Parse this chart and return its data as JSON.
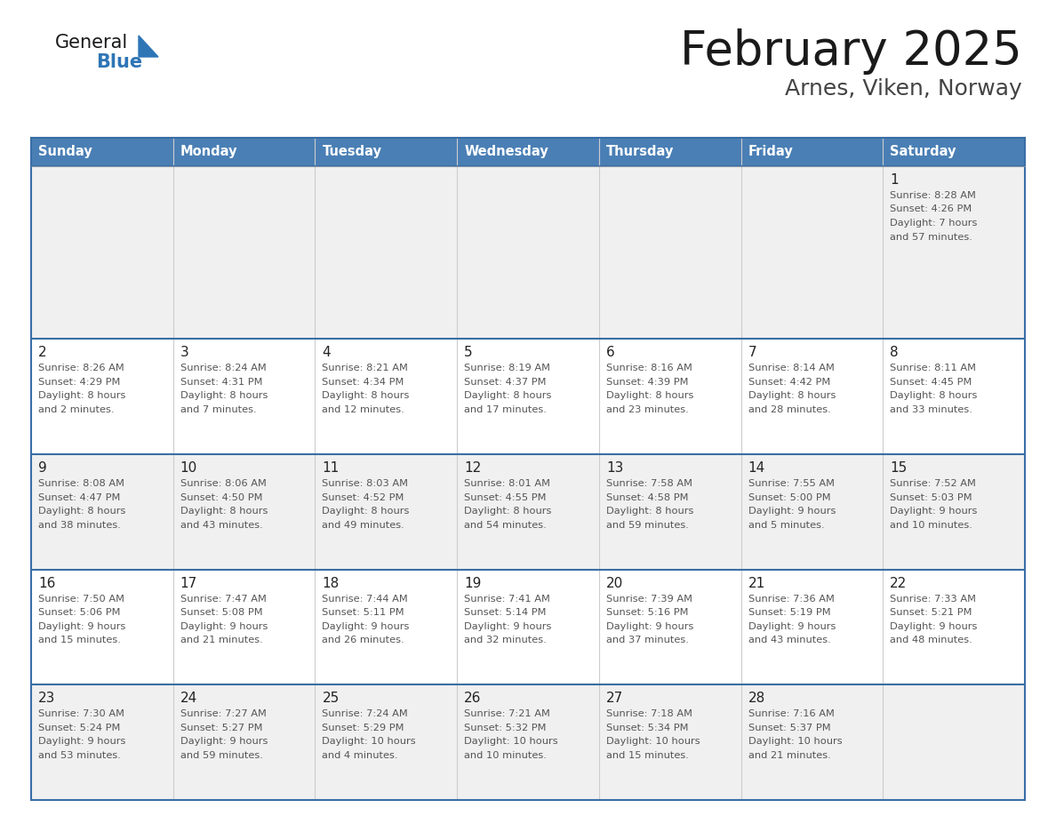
{
  "title": "February 2025",
  "subtitle": "Arnes, Viken, Norway",
  "days_of_week": [
    "Sunday",
    "Monday",
    "Tuesday",
    "Wednesday",
    "Thursday",
    "Friday",
    "Saturday"
  ],
  "header_bg": "#4a7fb5",
  "header_text": "#FFFFFF",
  "row1_bg": "#F0F0F0",
  "row2_bg": "#FFFFFF",
  "row3_bg": "#F0F0F0",
  "row4_bg": "#FFFFFF",
  "row5_bg": "#F0F0F0",
  "border_color": "#3a6ea5",
  "sep_color": "#3a6ea5",
  "text_color": "#333333",
  "title_color": "#1a1a1a",
  "subtitle_color": "#444444",
  "day_num_color": "#222222",
  "info_color": "#555555",
  "logo_blue": "#2E75B6",
  "logo_dark": "#1a1a1a",
  "calendar": [
    [
      {
        "day": "",
        "sunrise": "",
        "sunset": "",
        "daylight": ""
      },
      {
        "day": "",
        "sunrise": "",
        "sunset": "",
        "daylight": ""
      },
      {
        "day": "",
        "sunrise": "",
        "sunset": "",
        "daylight": ""
      },
      {
        "day": "",
        "sunrise": "",
        "sunset": "",
        "daylight": ""
      },
      {
        "day": "",
        "sunrise": "",
        "sunset": "",
        "daylight": ""
      },
      {
        "day": "",
        "sunrise": "",
        "sunset": "",
        "daylight": ""
      },
      {
        "day": "1",
        "sunrise": "8:28 AM",
        "sunset": "4:26 PM",
        "daylight": "7 hours and 57 minutes."
      }
    ],
    [
      {
        "day": "2",
        "sunrise": "8:26 AM",
        "sunset": "4:29 PM",
        "daylight": "8 hours and 2 minutes."
      },
      {
        "day": "3",
        "sunrise": "8:24 AM",
        "sunset": "4:31 PM",
        "daylight": "8 hours and 7 minutes."
      },
      {
        "day": "4",
        "sunrise": "8:21 AM",
        "sunset": "4:34 PM",
        "daylight": "8 hours and 12 minutes."
      },
      {
        "day": "5",
        "sunrise": "8:19 AM",
        "sunset": "4:37 PM",
        "daylight": "8 hours and 17 minutes."
      },
      {
        "day": "6",
        "sunrise": "8:16 AM",
        "sunset": "4:39 PM",
        "daylight": "8 hours and 23 minutes."
      },
      {
        "day": "7",
        "sunrise": "8:14 AM",
        "sunset": "4:42 PM",
        "daylight": "8 hours and 28 minutes."
      },
      {
        "day": "8",
        "sunrise": "8:11 AM",
        "sunset": "4:45 PM",
        "daylight": "8 hours and 33 minutes."
      }
    ],
    [
      {
        "day": "9",
        "sunrise": "8:08 AM",
        "sunset": "4:47 PM",
        "daylight": "8 hours and 38 minutes."
      },
      {
        "day": "10",
        "sunrise": "8:06 AM",
        "sunset": "4:50 PM",
        "daylight": "8 hours and 43 minutes."
      },
      {
        "day": "11",
        "sunrise": "8:03 AM",
        "sunset": "4:52 PM",
        "daylight": "8 hours and 49 minutes."
      },
      {
        "day": "12",
        "sunrise": "8:01 AM",
        "sunset": "4:55 PM",
        "daylight": "8 hours and 54 minutes."
      },
      {
        "day": "13",
        "sunrise": "7:58 AM",
        "sunset": "4:58 PM",
        "daylight": "8 hours and 59 minutes."
      },
      {
        "day": "14",
        "sunrise": "7:55 AM",
        "sunset": "5:00 PM",
        "daylight": "9 hours and 5 minutes."
      },
      {
        "day": "15",
        "sunrise": "7:52 AM",
        "sunset": "5:03 PM",
        "daylight": "9 hours and 10 minutes."
      }
    ],
    [
      {
        "day": "16",
        "sunrise": "7:50 AM",
        "sunset": "5:06 PM",
        "daylight": "9 hours and 15 minutes."
      },
      {
        "day": "17",
        "sunrise": "7:47 AM",
        "sunset": "5:08 PM",
        "daylight": "9 hours and 21 minutes."
      },
      {
        "day": "18",
        "sunrise": "7:44 AM",
        "sunset": "5:11 PM",
        "daylight": "9 hours and 26 minutes."
      },
      {
        "day": "19",
        "sunrise": "7:41 AM",
        "sunset": "5:14 PM",
        "daylight": "9 hours and 32 minutes."
      },
      {
        "day": "20",
        "sunrise": "7:39 AM",
        "sunset": "5:16 PM",
        "daylight": "9 hours and 37 minutes."
      },
      {
        "day": "21",
        "sunrise": "7:36 AM",
        "sunset": "5:19 PM",
        "daylight": "9 hours and 43 minutes."
      },
      {
        "day": "22",
        "sunrise": "7:33 AM",
        "sunset": "5:21 PM",
        "daylight": "9 hours and 48 minutes."
      }
    ],
    [
      {
        "day": "23",
        "sunrise": "7:30 AM",
        "sunset": "5:24 PM",
        "daylight": "9 hours and 53 minutes."
      },
      {
        "day": "24",
        "sunrise": "7:27 AM",
        "sunset": "5:27 PM",
        "daylight": "9 hours and 59 minutes."
      },
      {
        "day": "25",
        "sunrise": "7:24 AM",
        "sunset": "5:29 PM",
        "daylight": "10 hours and 4 minutes."
      },
      {
        "day": "26",
        "sunrise": "7:21 AM",
        "sunset": "5:32 PM",
        "daylight": "10 hours and 10 minutes."
      },
      {
        "day": "27",
        "sunrise": "7:18 AM",
        "sunset": "5:34 PM",
        "daylight": "10 hours and 15 minutes."
      },
      {
        "day": "28",
        "sunrise": "7:16 AM",
        "sunset": "5:37 PM",
        "daylight": "10 hours and 21 minutes."
      },
      {
        "day": "",
        "sunrise": "",
        "sunset": "",
        "daylight": ""
      }
    ]
  ]
}
